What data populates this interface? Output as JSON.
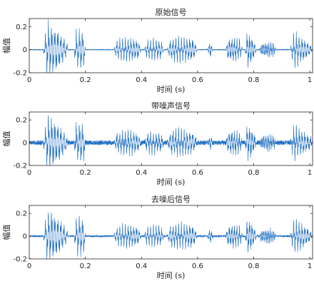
{
  "chart_data": [
    {
      "type": "line",
      "title": "原始信号",
      "xlabel": "时间 (s)",
      "ylabel": "幅值",
      "xlim": [
        0,
        1.01
      ],
      "ylim": [
        -0.2,
        0.27
      ],
      "xticks": [
        "0",
        "0.2",
        "0.4",
        "0.6",
        "0.8",
        "1"
      ],
      "yticks": [
        "0.2",
        "0",
        "-0.2"
      ],
      "grid": false,
      "series": [
        {
          "color": "#1f6fc1",
          "segments": [
            {
              "start": 0.05,
              "end": 0.14,
              "amp": 0.25,
              "period": 0.011,
              "shape": "rise-decay"
            },
            {
              "start": 0.16,
              "end": 0.2,
              "amp": 0.18,
              "period": 0.011,
              "shape": "flat"
            },
            {
              "start": 0.3,
              "end": 0.4,
              "amp": 0.1,
              "period": 0.01,
              "shape": "flat"
            },
            {
              "start": 0.41,
              "end": 0.48,
              "amp": 0.09,
              "period": 0.01,
              "shape": "flat"
            },
            {
              "start": 0.49,
              "end": 0.6,
              "amp": 0.11,
              "period": 0.01,
              "shape": "flat"
            },
            {
              "start": 0.63,
              "end": 0.66,
              "amp": 0.07,
              "period": 0.008,
              "shape": "spike"
            },
            {
              "start": 0.7,
              "end": 0.76,
              "amp": 0.1,
              "period": 0.009,
              "shape": "flat"
            },
            {
              "start": 0.77,
              "end": 0.81,
              "amp": 0.16,
              "period": 0.009,
              "shape": "rise-decay"
            },
            {
              "start": 0.82,
              "end": 0.88,
              "amp": 0.06,
              "period": 0.006,
              "shape": "flat"
            },
            {
              "start": 0.93,
              "end": 1.01,
              "amp": 0.15,
              "period": 0.01,
              "shape": "rise-decay"
            }
          ],
          "noise": 0.004
        }
      ]
    },
    {
      "type": "line",
      "title": "带噪声信号",
      "xlabel": "时间 (s)",
      "ylabel": "幅值",
      "xlim": [
        0,
        1.01
      ],
      "ylim": [
        -0.2,
        0.27
      ],
      "xticks": [
        "0",
        "0.2",
        "0.4",
        "0.6",
        "0.8",
        "1"
      ],
      "yticks": [
        "0.2",
        "0",
        "-0.2"
      ],
      "grid": false,
      "series": [
        {
          "color": "#1f6fc1",
          "segments": [
            {
              "start": 0.05,
              "end": 0.14,
              "amp": 0.25,
              "period": 0.011,
              "shape": "rise-decay"
            },
            {
              "start": 0.16,
              "end": 0.2,
              "amp": 0.18,
              "period": 0.011,
              "shape": "flat"
            },
            {
              "start": 0.3,
              "end": 0.4,
              "amp": 0.1,
              "period": 0.01,
              "shape": "flat"
            },
            {
              "start": 0.41,
              "end": 0.48,
              "amp": 0.09,
              "period": 0.01,
              "shape": "flat"
            },
            {
              "start": 0.49,
              "end": 0.6,
              "amp": 0.11,
              "period": 0.01,
              "shape": "flat"
            },
            {
              "start": 0.63,
              "end": 0.66,
              "amp": 0.07,
              "period": 0.008,
              "shape": "spike"
            },
            {
              "start": 0.7,
              "end": 0.76,
              "amp": 0.1,
              "period": 0.009,
              "shape": "flat"
            },
            {
              "start": 0.77,
              "end": 0.81,
              "amp": 0.16,
              "period": 0.009,
              "shape": "rise-decay"
            },
            {
              "start": 0.82,
              "end": 0.88,
              "amp": 0.06,
              "period": 0.006,
              "shape": "flat"
            },
            {
              "start": 0.93,
              "end": 1.01,
              "amp": 0.15,
              "period": 0.01,
              "shape": "rise-decay"
            }
          ],
          "noise": 0.02
        }
      ]
    },
    {
      "type": "line",
      "title": "去噪后信号",
      "xlabel": "时间 (s)",
      "ylabel": "幅值",
      "xlim": [
        0,
        1.01
      ],
      "ylim": [
        -0.2,
        0.27
      ],
      "xticks": [
        "0",
        "0.2",
        "0.4",
        "0.6",
        "0.8",
        "1"
      ],
      "yticks": [
        "0.2",
        "0",
        "-0.2"
      ],
      "grid": false,
      "series": [
        {
          "color": "#1f6fc1",
          "segments": [
            {
              "start": 0.05,
              "end": 0.14,
              "amp": 0.25,
              "period": 0.011,
              "shape": "rise-decay"
            },
            {
              "start": 0.16,
              "end": 0.2,
              "amp": 0.18,
              "period": 0.011,
              "shape": "flat"
            },
            {
              "start": 0.3,
              "end": 0.4,
              "amp": 0.1,
              "period": 0.01,
              "shape": "flat"
            },
            {
              "start": 0.41,
              "end": 0.48,
              "amp": 0.09,
              "period": 0.01,
              "shape": "flat"
            },
            {
              "start": 0.49,
              "end": 0.6,
              "amp": 0.11,
              "period": 0.01,
              "shape": "flat"
            },
            {
              "start": 0.63,
              "end": 0.66,
              "amp": 0.07,
              "period": 0.008,
              "shape": "spike"
            },
            {
              "start": 0.7,
              "end": 0.76,
              "amp": 0.1,
              "period": 0.009,
              "shape": "flat"
            },
            {
              "start": 0.77,
              "end": 0.81,
              "amp": 0.16,
              "period": 0.009,
              "shape": "rise-decay"
            },
            {
              "start": 0.82,
              "end": 0.88,
              "amp": 0.06,
              "period": 0.006,
              "shape": "flat"
            },
            {
              "start": 0.93,
              "end": 1.01,
              "amp": 0.15,
              "period": 0.01,
              "shape": "rise-decay"
            }
          ],
          "noise": 0.008
        }
      ]
    }
  ]
}
